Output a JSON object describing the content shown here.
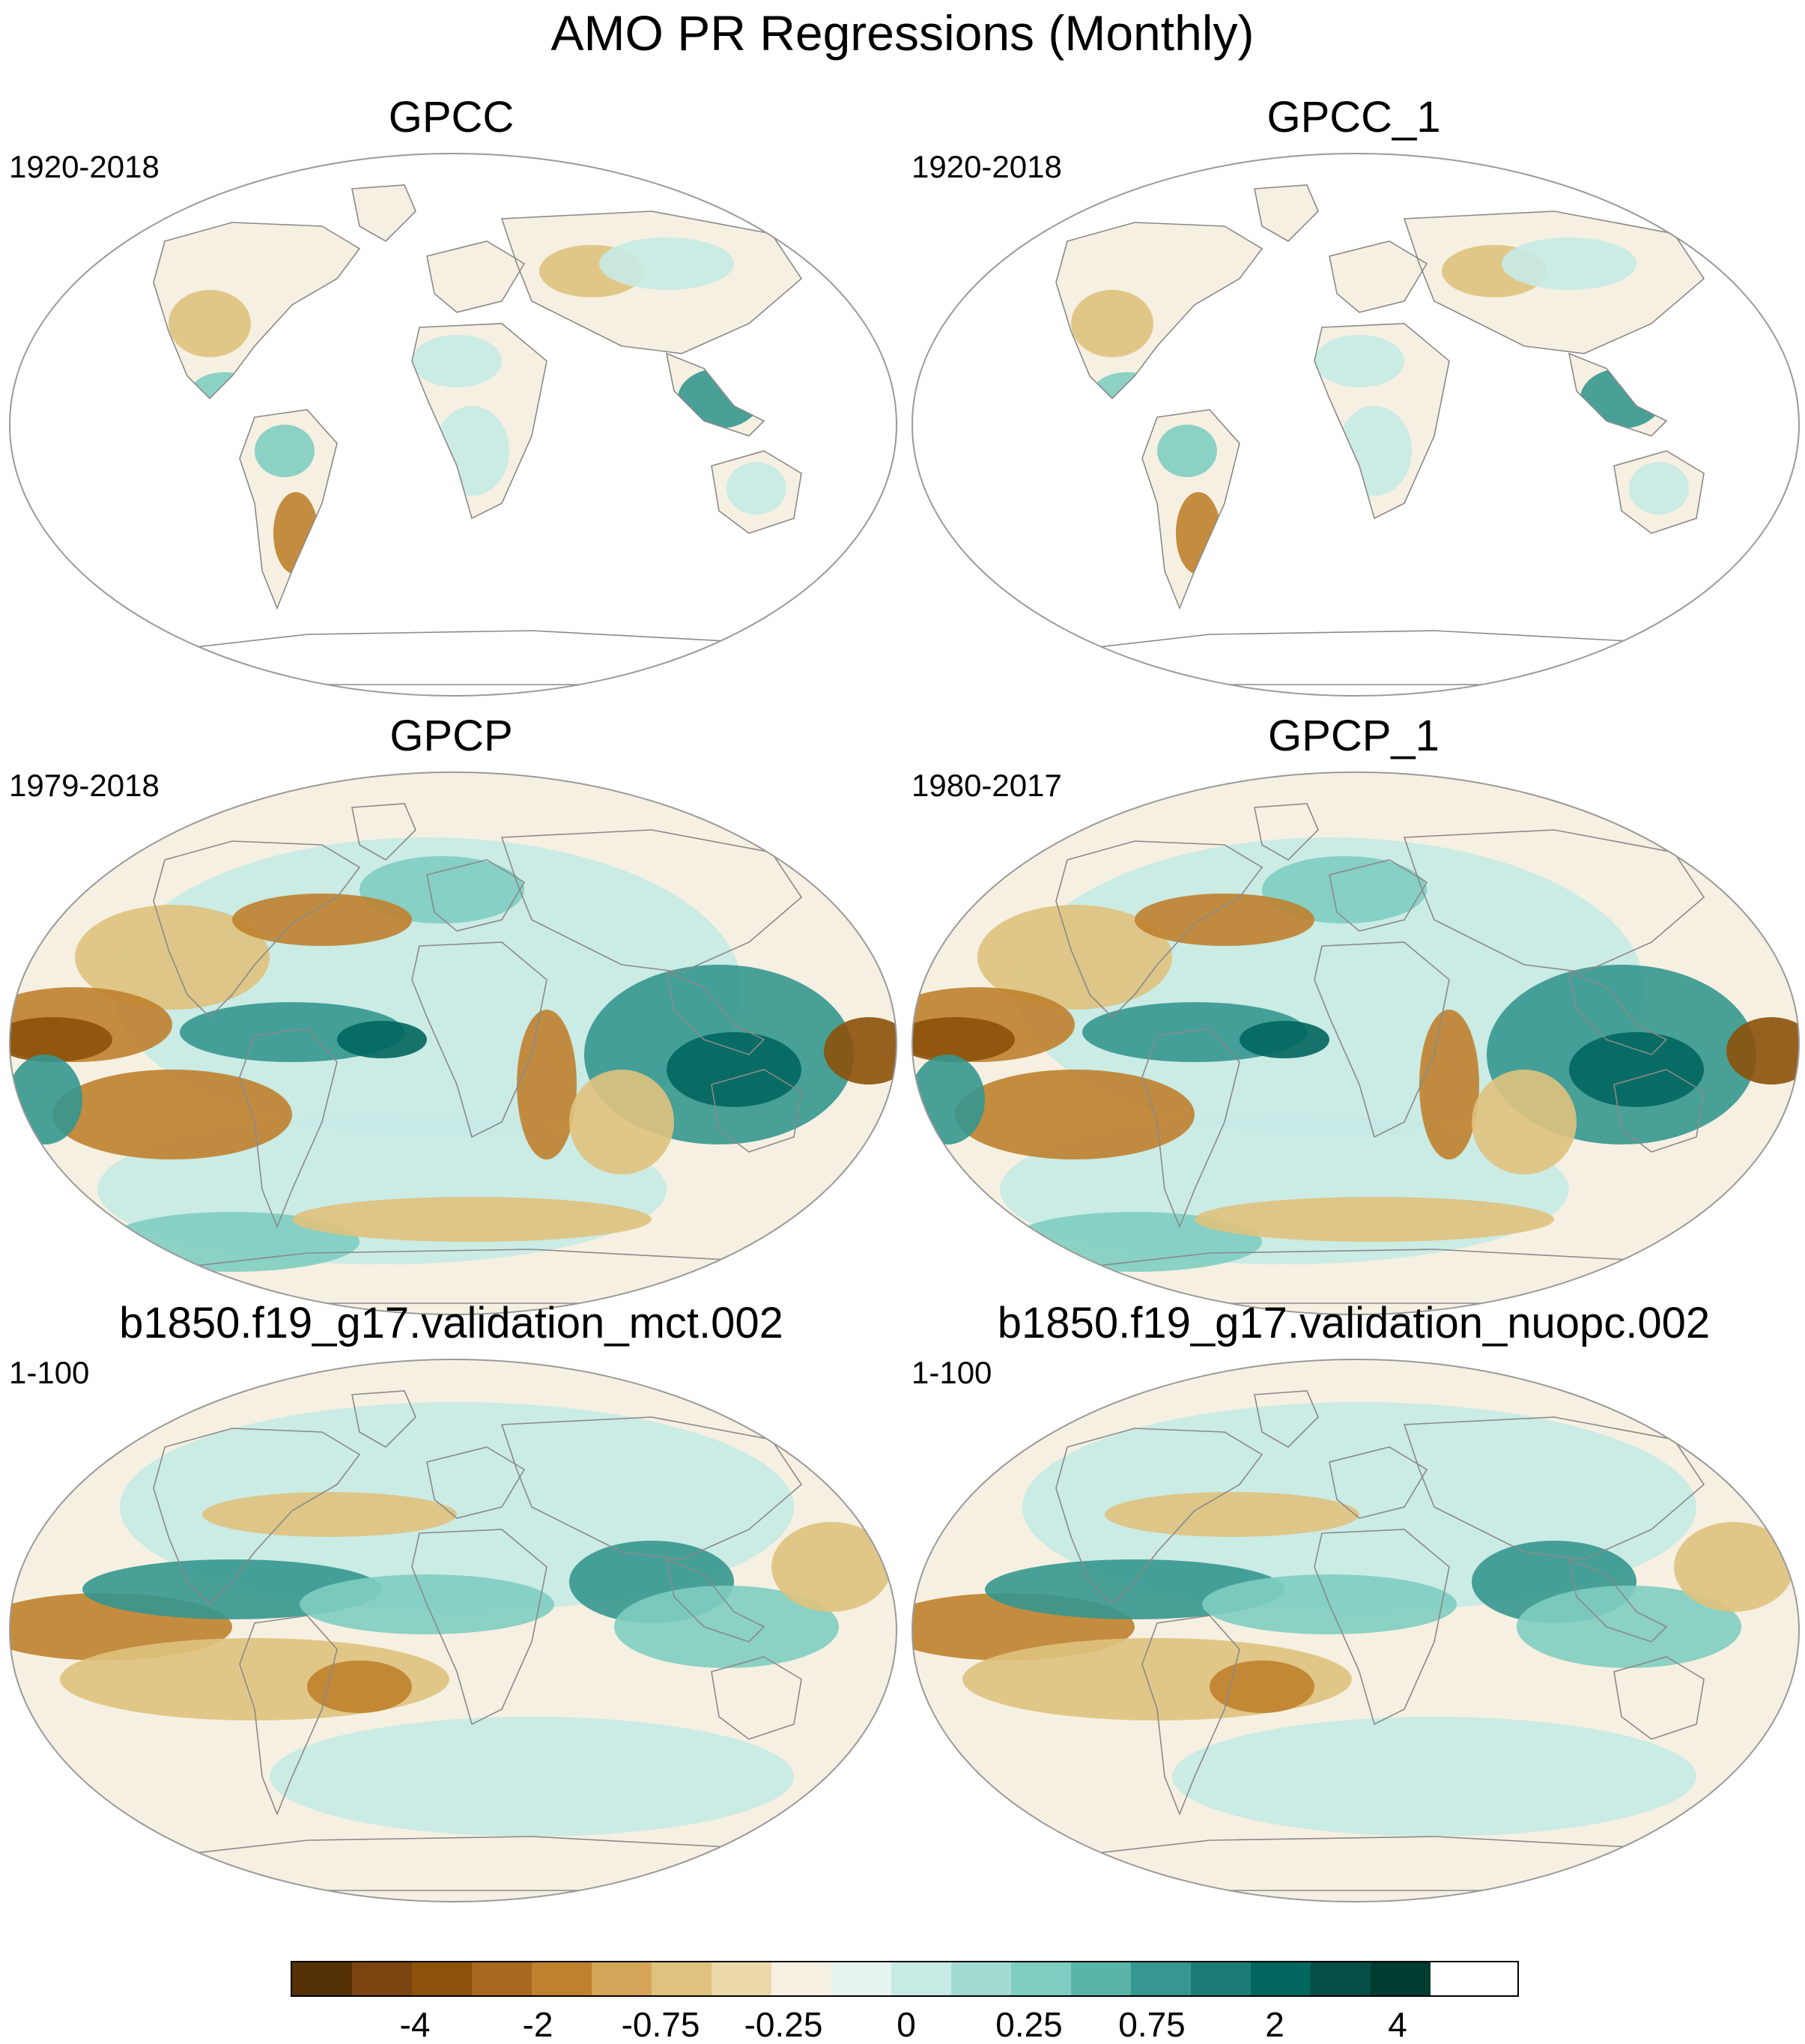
{
  "title": "AMO PR Regressions (Monthly)",
  "panels": [
    {
      "title": "GPCC",
      "period": "1920-2018",
      "kind": "land"
    },
    {
      "title": "GPCC_1",
      "period": "1920-2018",
      "kind": "land"
    },
    {
      "title": "GPCP",
      "period": "1979-2018",
      "kind": "full"
    },
    {
      "title": "GPCP_1",
      "period": "1980-2017",
      "kind": "full"
    },
    {
      "title": "b1850.f19_g17.validation_mct.002",
      "period": "1-100",
      "kind": "model"
    },
    {
      "title": "b1850.f19_g17.validation_nuopc.002",
      "period": "1-100",
      "kind": "model"
    }
  ],
  "colorbar": {
    "colors": [
      "#543005",
      "#7a4510",
      "#8c510a",
      "#a8681f",
      "#bf812d",
      "#d5a55a",
      "#dfc27d",
      "#ecd9a9",
      "#f6f0e2",
      "#e6f3f1",
      "#c7eae5",
      "#a1dbd1",
      "#80cdc1",
      "#5ab4a8",
      "#35978f",
      "#1b7d75",
      "#01665e",
      "#064d45",
      "#003c30"
    ],
    "ticks": [
      "-4",
      "-2",
      "-0.75",
      "-0.25",
      "0",
      "0.25",
      "0.75",
      "2",
      "4"
    ]
  },
  "colors": {
    "brown_strong": "#8c510a",
    "brown_mid": "#bf812d",
    "brown_light": "#dfc27d",
    "neutral": "#f6f0e2",
    "teal_light": "#c7eae5",
    "teal_mid": "#80cdc1",
    "teal_strong": "#35978f",
    "teal_dark": "#01665e"
  }
}
